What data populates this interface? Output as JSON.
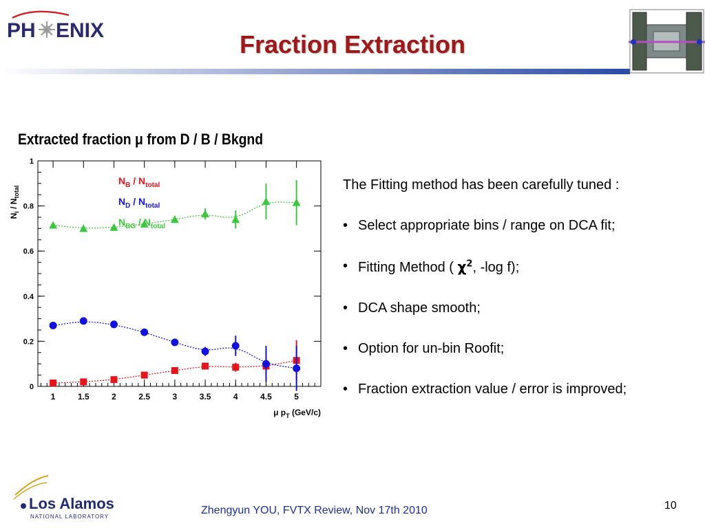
{
  "header": {
    "logo_text": "PHENIX",
    "title": "Fraction Extraction"
  },
  "chart_heading": "Extracted fraction μ from D / B / Bkgnd",
  "chart_data": {
    "type": "scatter",
    "ylabel": "N_i / N_total",
    "xlabel": "μ p_T (GeV/c)",
    "xlim": [
      0.75,
      5.4
    ],
    "ylim": [
      0,
      1.0
    ],
    "x_ticks": [
      "1",
      "1.5",
      "2",
      "2.5",
      "3",
      "3.5",
      "4",
      "4.5",
      "5"
    ],
    "y_ticks": [
      "0",
      "0.2",
      "0.4",
      "0.6",
      "0.8",
      "1"
    ],
    "grid": false,
    "legend_position": "top-center",
    "series": [
      {
        "name": "N_B / N_total",
        "color": "#e8141b",
        "marker": "square",
        "x": [
          1,
          1.5,
          2,
          2.5,
          3,
          3.5,
          4,
          4.5,
          5
        ],
        "y": [
          0.015,
          0.02,
          0.03,
          0.05,
          0.07,
          0.09,
          0.085,
          0.09,
          0.115
        ],
        "err": [
          0.005,
          0.005,
          0.006,
          0.008,
          0.01,
          0.01,
          0.02,
          0.04,
          0.09
        ]
      },
      {
        "name": "N_D / N_total",
        "color": "#1212e0",
        "marker": "circle",
        "x": [
          1,
          1.5,
          2,
          2.5,
          3,
          3.5,
          4,
          4.5,
          5
        ],
        "y": [
          0.27,
          0.29,
          0.275,
          0.24,
          0.195,
          0.155,
          0.18,
          0.1,
          0.08
        ],
        "err": [
          0.008,
          0.008,
          0.008,
          0.01,
          0.012,
          0.02,
          0.045,
          0.08,
          0.1
        ]
      },
      {
        "name": "N_BG / N_total",
        "color": "#3cc83c",
        "marker": "triangle",
        "x": [
          1,
          1.5,
          2,
          2.5,
          3,
          3.5,
          4,
          4.5,
          5
        ],
        "y": [
          0.715,
          0.7,
          0.705,
          0.72,
          0.74,
          0.765,
          0.74,
          0.82,
          0.815
        ],
        "err": [
          0.008,
          0.008,
          0.01,
          0.012,
          0.015,
          0.025,
          0.04,
          0.08,
          0.1
        ]
      }
    ]
  },
  "bullets": {
    "intro": "The Fitting method has been carefully tuned :",
    "items": [
      "Select appropriate bins / range on DCA fit;",
      "Fitting Method (",
      "DCA shape smooth;",
      "Option for un-bin Roofit;",
      "Fraction extraction value / error is improved;"
    ],
    "chi_symbol": "χ",
    "chi_power": "2",
    "fitting_tail": ", -log f);"
  },
  "footer": {
    "lab_name": "Los Alamos",
    "lab_sub": "NATIONAL LABORATORY",
    "text": "Zhengyun YOU, FVTX Review, Nov 17th 2010",
    "page": "10"
  }
}
